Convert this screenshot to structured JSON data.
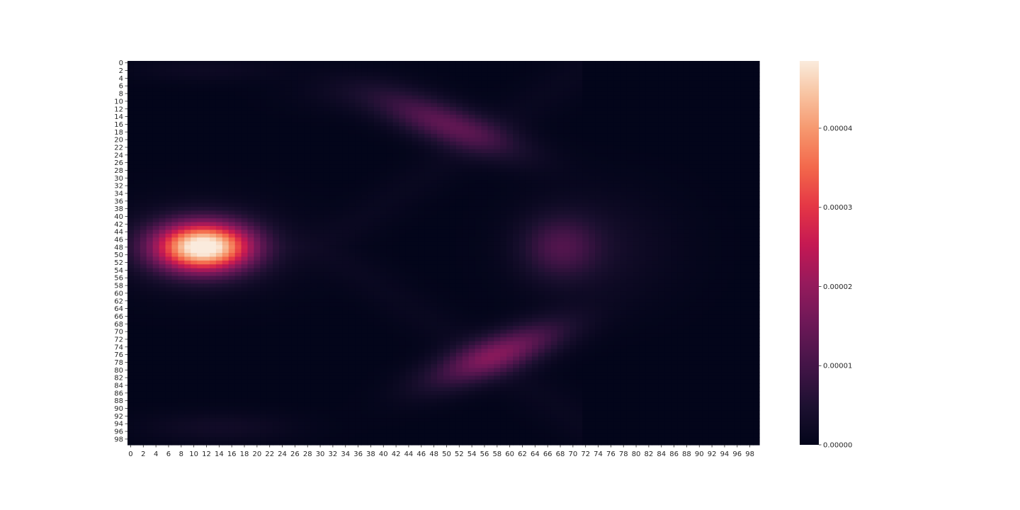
{
  "chart_data": {
    "type": "heatmap",
    "title": "",
    "xlabel": "",
    "ylabel": "",
    "grid": false,
    "n_rows": 100,
    "n_cols": 100,
    "row_labels": [
      "0",
      "2",
      "4",
      "6",
      "8",
      "10",
      "12",
      "14",
      "16",
      "18",
      "20",
      "22",
      "24",
      "26",
      "28",
      "30",
      "32",
      "34",
      "36",
      "38",
      "40",
      "42",
      "44",
      "46",
      "48",
      "50",
      "52",
      "54",
      "56",
      "58",
      "60",
      "62",
      "64",
      "66",
      "68",
      "70",
      "72",
      "74",
      "76",
      "78",
      "80",
      "82",
      "84",
      "86",
      "88",
      "90",
      "92",
      "94",
      "96",
      "98"
    ],
    "row_label_values": [
      0,
      2,
      4,
      6,
      8,
      10,
      12,
      14,
      16,
      18,
      20,
      22,
      24,
      26,
      28,
      30,
      32,
      34,
      36,
      38,
      40,
      42,
      44,
      46,
      48,
      50,
      52,
      54,
      56,
      58,
      60,
      62,
      64,
      66,
      68,
      70,
      72,
      74,
      76,
      78,
      80,
      82,
      84,
      86,
      88,
      90,
      92,
      94,
      96,
      98
    ],
    "col_labels": [
      "0",
      "2",
      "4",
      "6",
      "8",
      "10",
      "12",
      "14",
      "16",
      "18",
      "20",
      "22",
      "24",
      "26",
      "28",
      "30",
      "32",
      "34",
      "36",
      "38",
      "40",
      "42",
      "44",
      "46",
      "48",
      "50",
      "52",
      "54",
      "56",
      "58",
      "60",
      "62",
      "64",
      "66",
      "68",
      "70",
      "72",
      "74",
      "76",
      "78",
      "80",
      "82",
      "84",
      "86",
      "88",
      "90",
      "92",
      "94",
      "96",
      "98"
    ],
    "col_label_values": [
      0,
      2,
      4,
      6,
      8,
      10,
      12,
      14,
      16,
      18,
      20,
      22,
      24,
      26,
      28,
      30,
      32,
      34,
      36,
      38,
      40,
      42,
      44,
      46,
      48,
      50,
      52,
      54,
      56,
      58,
      60,
      62,
      64,
      66,
      68,
      70,
      72,
      74,
      76,
      78,
      80,
      82,
      84,
      86,
      88,
      90,
      92,
      94,
      96,
      98
    ],
    "value_range": [
      0,
      4.85e-05
    ],
    "features": [
      {
        "type": "peak",
        "row": 48,
        "col": 12,
        "value": 4.85e-05
      },
      {
        "type": "band",
        "row_range": [
          8,
          26
        ],
        "col_range": [
          42,
          72
        ],
        "value": 1.4e-05
      },
      {
        "type": "band",
        "row_range": [
          66,
          86
        ],
        "col_range": [
          48,
          68
        ],
        "value": 1.8e-05
      },
      {
        "type": "band",
        "row_range": [
          42,
          56
        ],
        "col_range": [
          64,
          74
        ],
        "value": 1.1e-05
      },
      {
        "type": "band",
        "row_range": [
          88,
          98
        ],
        "col_range": [
          6,
          24
        ],
        "value": 4e-06
      },
      {
        "type": "band",
        "row_range": [
          0,
          4
        ],
        "col_range": [
          4,
          20
        ],
        "value": 3e-06
      }
    ],
    "colormap": "rocket",
    "colorbar": {
      "ticks": [
        0,
        1e-05,
        2e-05,
        3e-05,
        4e-05
      ],
      "tick_labels": [
        "0.00000",
        "0.00001",
        "0.00002",
        "0.00003",
        "0.00004"
      ],
      "min": 0,
      "max": 4.85e-05
    }
  }
}
